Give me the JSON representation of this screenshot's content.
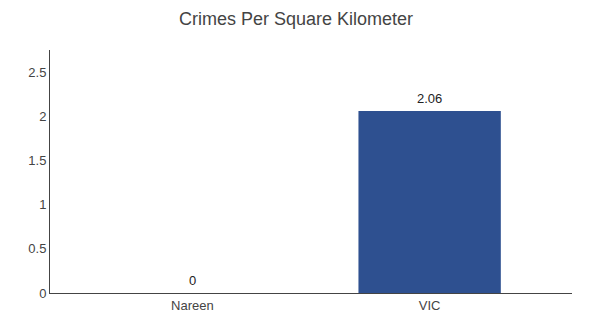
{
  "chart_data": {
    "type": "bar",
    "title": "Crimes Per Square Kilometer",
    "categories": [
      "Nareen",
      "VIC"
    ],
    "values": [
      0,
      2.06
    ],
    "color": "#2e5090",
    "ylim": [
      0,
      2.75
    ],
    "yticks": [
      0,
      0.5,
      1,
      1.5,
      2,
      2.5
    ],
    "grid": false,
    "data_labels": true
  }
}
